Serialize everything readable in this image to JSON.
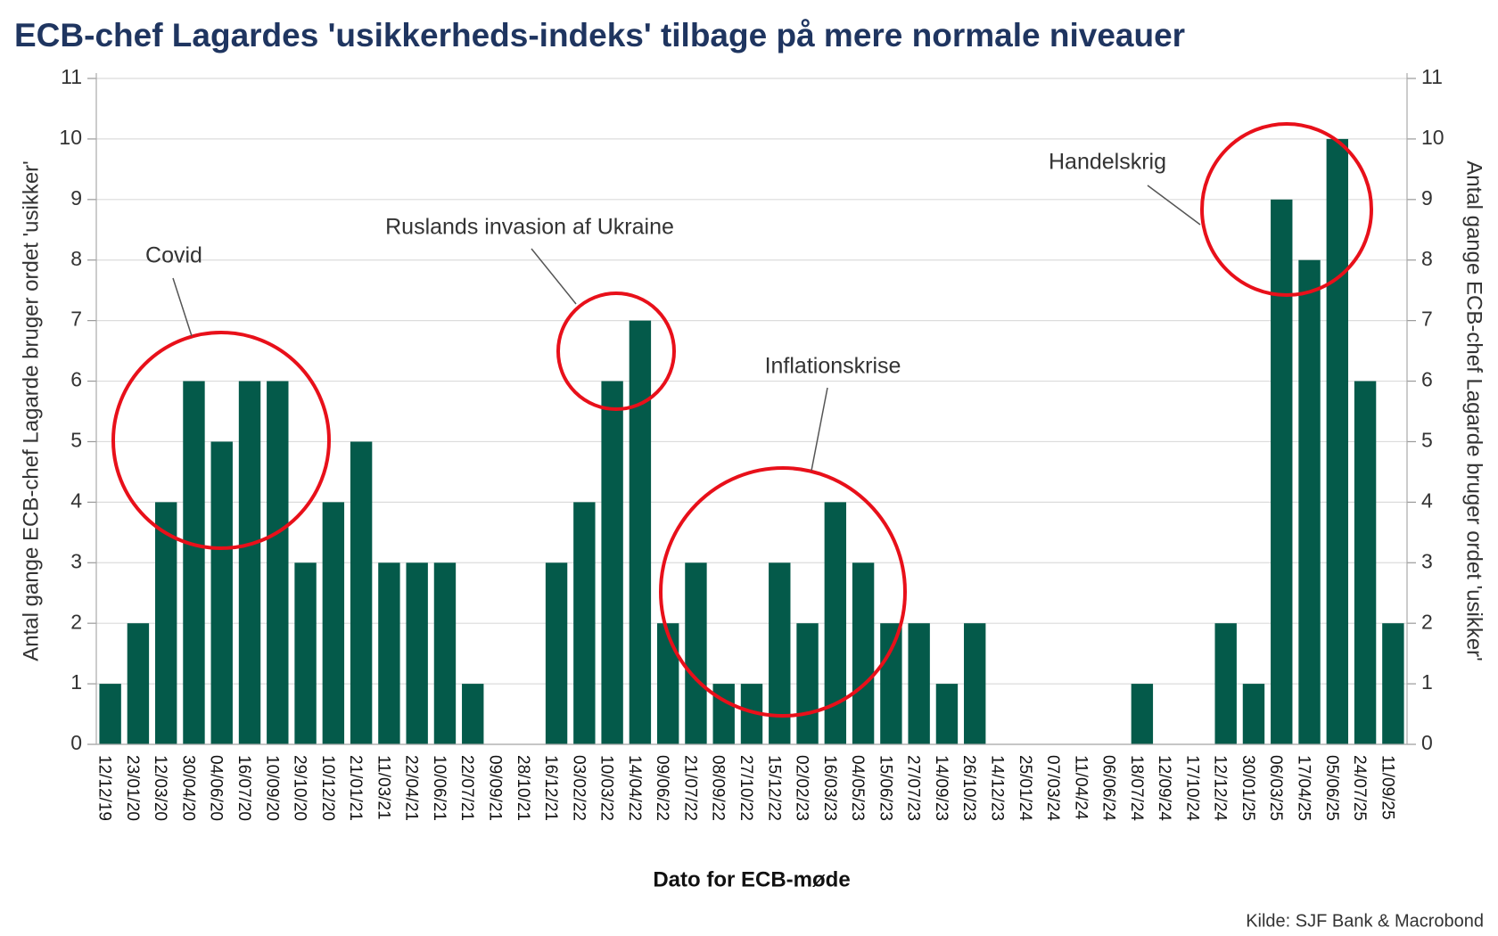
{
  "chart_data": {
    "type": "bar",
    "title": "ECB-chef Lagardes 'usikkerheds-indeks' tilbage på mere normale niveauer",
    "xlabel": "Dato for ECB-møde",
    "ylabel": "Antal gange ECB-chef Lagarde bruger ordet 'usikker'",
    "y2label": "Antal gange ECB-chef Lagarde bruger ordet 'usikker'",
    "source": "Kilde: SJF Bank & Macrobond",
    "categories": [
      "12/12/19",
      "23/01/20",
      "12/03/20",
      "30/04/20",
      "04/06/20",
      "16/07/20",
      "10/09/20",
      "29/10/20",
      "10/12/20",
      "21/01/21",
      "11/03/21",
      "22/04/21",
      "10/06/21",
      "22/07/21",
      "09/09/21",
      "28/10/21",
      "16/12/21",
      "03/02/22",
      "10/03/22",
      "14/04/22",
      "09/06/22",
      "21/07/22",
      "08/09/22",
      "27/10/22",
      "15/12/22",
      "02/02/23",
      "16/03/23",
      "04/05/23",
      "15/06/23",
      "27/07/23",
      "14/09/23",
      "26/10/23",
      "14/12/23",
      "25/01/24",
      "07/03/24",
      "11/04/24",
      "06/06/24",
      "18/07/24",
      "12/09/24",
      "17/10/24",
      "12/12/24",
      "30/01/25",
      "06/03/25",
      "17/04/25",
      "05/06/25",
      "24/07/25",
      "11/09/25"
    ],
    "values": [
      1,
      2,
      4,
      6,
      5,
      6,
      6,
      3,
      4,
      5,
      3,
      3,
      3,
      1,
      0,
      0,
      3,
      4,
      6,
      7,
      2,
      3,
      1,
      1,
      3,
      2,
      4,
      3,
      2,
      2,
      1,
      2,
      0,
      0,
      0,
      0,
      0,
      1,
      0,
      0,
      2,
      1,
      9,
      8,
      10,
      6,
      2
    ],
    "color": "#045a4a",
    "ylim": [
      0,
      11
    ],
    "yticks": [
      0,
      1,
      2,
      3,
      4,
      5,
      6,
      7,
      8,
      9,
      10,
      11
    ],
    "y2lim": [
      0,
      11
    ],
    "y2ticks": [
      0,
      1,
      2,
      3,
      4,
      5,
      6,
      7,
      8,
      9,
      10,
      11
    ],
    "grid": true,
    "annotations": [
      "Covid",
      "Ruslands invasion af Ukraine",
      "Inflationskrise",
      "Handelskrig"
    ]
  }
}
